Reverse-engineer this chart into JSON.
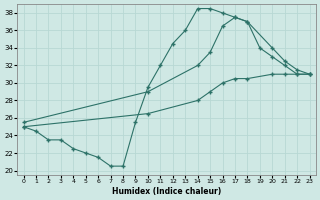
{
  "xlabel": "Humidex (Indice chaleur)",
  "ylabel": "",
  "bg_color": "#cfe8e4",
  "grid_color": "#b8d8d4",
  "line_color": "#2d7268",
  "xlim": [
    -0.5,
    23.5
  ],
  "ylim": [
    19.5,
    39.0
  ],
  "yticks": [
    20,
    22,
    24,
    26,
    28,
    30,
    32,
    34,
    36,
    38
  ],
  "xticks": [
    0,
    1,
    2,
    3,
    4,
    5,
    6,
    7,
    8,
    9,
    10,
    11,
    12,
    13,
    14,
    15,
    16,
    17,
    18,
    19,
    20,
    21,
    22,
    23
  ],
  "line_curved_x": [
    0,
    1,
    2,
    3,
    4,
    5,
    6,
    7,
    8,
    9,
    10,
    11,
    12,
    13,
    14,
    15,
    16,
    17,
    18,
    19,
    20,
    21,
    22,
    23
  ],
  "line_curved_y": [
    25.0,
    24.5,
    23.5,
    23.5,
    22.5,
    22.0,
    21.5,
    20.5,
    20.5,
    25.5,
    29.5,
    32.0,
    34.5,
    36.0,
    38.5,
    38.5,
    38.0,
    37.5,
    37.0,
    34.0,
    33.0,
    32.0,
    31.0,
    31.0
  ],
  "line_upper_x": [
    0,
    10,
    14,
    15,
    16,
    17,
    18,
    20,
    21,
    22,
    23
  ],
  "line_upper_y": [
    25.5,
    29.0,
    32.0,
    33.5,
    36.5,
    37.5,
    37.0,
    34.0,
    32.5,
    31.5,
    31.0
  ],
  "line_lower_x": [
    0,
    10,
    14,
    15,
    16,
    17,
    18,
    20,
    21,
    22,
    23
  ],
  "line_lower_y": [
    25.0,
    26.5,
    28.0,
    29.0,
    30.0,
    30.5,
    30.5,
    31.0,
    31.0,
    31.0,
    31.0
  ]
}
